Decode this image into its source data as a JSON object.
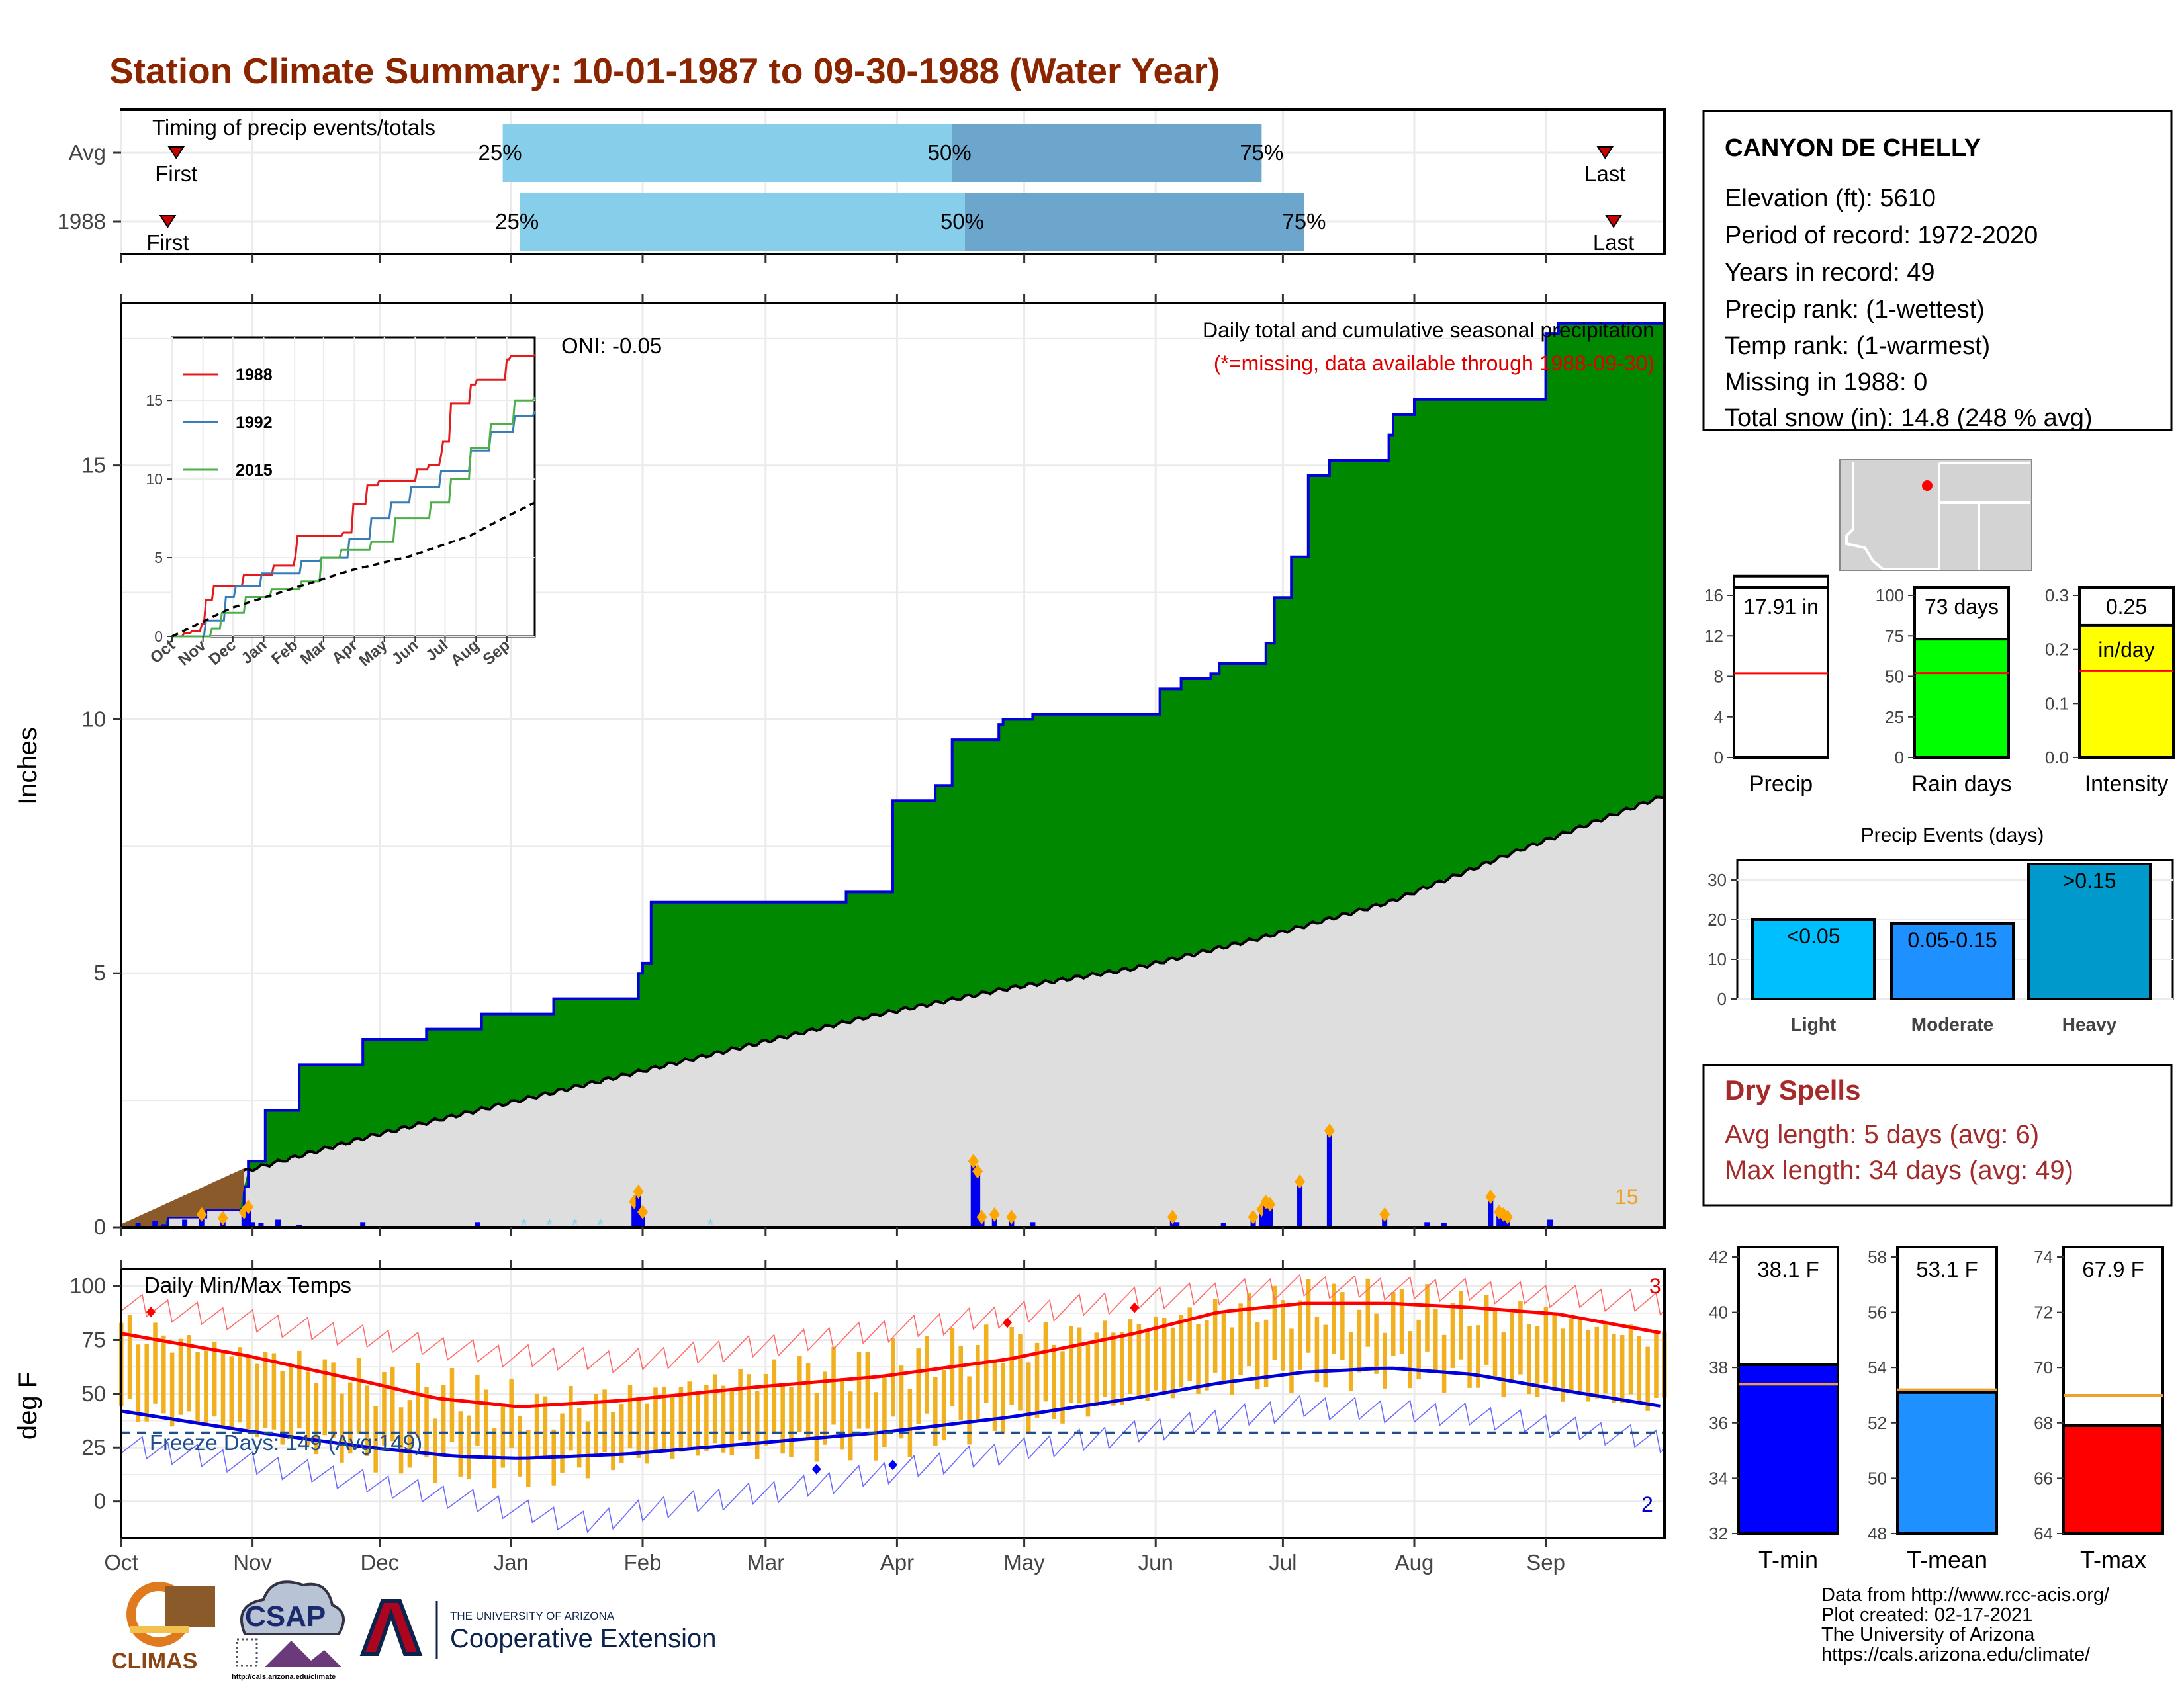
{
  "title": "Station Climate Summary: 10-01-1987 to 09-30-1988 (Water Year)",
  "colors": {
    "title": "#8B2500",
    "green_fill": "#008800",
    "blue_line": "#0000DD",
    "gray_fill": "#DEDEDE",
    "brown": "#8B5A2B",
    "light_blue": "#87CEEB",
    "mid_blue": "#6CA6CD",
    "tmin_bar": "#0000FF",
    "tmean_bar": "#1E90FF",
    "tmax_bar": "#FF0000",
    "range_bar": "#F0B020",
    "orange_ref": "#F0A030",
    "dry_red": "#A52A2A"
  },
  "timing": {
    "title": "Timing of precip events/totals",
    "rows": [
      {
        "label": "Avg",
        "first_label": "First",
        "last_label": "Last",
        "q25": "25%",
        "q50": "50%",
        "q75": "75%",
        "first_day": 14,
        "p25_day": 91,
        "p50_day": 197,
        "p75_day": 270,
        "last_day": 351
      },
      {
        "label": "1988",
        "first_label": "First",
        "last_label": "Last",
        "q25": "25%",
        "q50": "50%",
        "q75": "75%",
        "first_day": 12,
        "p25_day": 95,
        "p50_day": 200,
        "p75_day": 280,
        "last_day": 353
      }
    ]
  },
  "station": {
    "name": "CANYON DE CHELLY",
    "lines": [
      "Elevation (ft): 5610",
      "Period of record: 1972-2020",
      "Years in record: 49",
      "Precip rank:  (1-wettest)",
      "Temp rank:  (1-warmest)",
      "Missing in 1988: 0",
      "Total snow (in): 14.8 (248 % avg)"
    ]
  },
  "main_precip": {
    "title": "Daily total and cumulative seasonal precipitation",
    "subtitle": "(*=missing, data available through 1988-09-30)",
    "oni": "ONI: -0.05",
    "ylabel": "Inches",
    "yticks": [
      "0",
      "5",
      "10",
      "15"
    ],
    "corner_count": "15"
  },
  "inset": {
    "legend": [
      "1988",
      "1992",
      "2015"
    ],
    "yticks": [
      "0",
      "5",
      "10",
      "15"
    ],
    "xticks": [
      "Oct",
      "Nov",
      "Dec",
      "Jan",
      "Feb",
      "Mar",
      "Apr",
      "May",
      "Jun",
      "Jul",
      "Aug",
      "Sep"
    ]
  },
  "temps": {
    "title": "Daily Min/Max Temps",
    "ylabel": "deg F",
    "yticks": [
      "0",
      "25",
      "50",
      "75",
      "100"
    ],
    "freeze_label": "Freeze Days: 149 (Avg:149)",
    "count_max": "3",
    "count_min": "2"
  },
  "months": [
    "Oct",
    "Nov",
    "Dec",
    "Jan",
    "Feb",
    "Mar",
    "Apr",
    "May",
    "Jun",
    "Jul",
    "Aug",
    "Sep"
  ],
  "mini_bars": [
    {
      "label": "Precip",
      "value_text": "17.91 in",
      "value": 17.91,
      "avg": 8.3,
      "ymax": 16,
      "yticks": [
        "0",
        "4",
        "8",
        "12",
        "16"
      ],
      "color": "#FFFFFF"
    },
    {
      "label": "Rain days",
      "value_text": "73 days",
      "value": 73,
      "avg": 52,
      "ymax": 100,
      "yticks": [
        "0",
        "25",
        "50",
        "75",
        "100"
      ],
      "color": "#00FF00"
    },
    {
      "label": "Intensity",
      "value_text": "0.25",
      "unit_text": "in/day",
      "value": 0.245,
      "avg": 0.16,
      "ymax": 0.3,
      "yticks": [
        "0.0",
        "0.1",
        "0.2",
        "0.3"
      ],
      "color": "#FFFF00"
    }
  ],
  "precip_events": {
    "title": "Precip Events (days)",
    "yticks": [
      "0",
      "10",
      "20",
      "30"
    ],
    "categories": [
      "Light",
      "Moderate",
      "Heavy"
    ],
    "bar_labels": [
      "<0.05",
      "0.05-0.15",
      ">0.15"
    ],
    "values": [
      20,
      19,
      34
    ],
    "colors": [
      "#00BFFF",
      "#1E90FF",
      "#0099CC"
    ]
  },
  "dry_spells": {
    "title": "Dry Spells",
    "avg_line": "Avg length: 5 days (avg: 6)",
    "max_line": "Max length: 34 days (avg: 49)"
  },
  "temp_bars": [
    {
      "label": "T-min",
      "value_text": "38.1 F",
      "value": 38.1,
      "avg": 37.4,
      "ymin": 32,
      "ymax": 42,
      "yticks": [
        "32",
        "34",
        "36",
        "38",
        "40",
        "42"
      ],
      "color": "#0000FF"
    },
    {
      "label": "T-mean",
      "value_text": "53.1 F",
      "value": 53.1,
      "avg": 53.2,
      "ymin": 48,
      "ymax": 58,
      "yticks": [
        "48",
        "50",
        "52",
        "54",
        "56",
        "58"
      ],
      "color": "#1E90FF"
    },
    {
      "label": "T-max",
      "value_text": "67.9 F",
      "value": 67.9,
      "avg": 69.0,
      "ymin": 64,
      "ymax": 74,
      "yticks": [
        "64",
        "66",
        "68",
        "70",
        "72",
        "74"
      ],
      "color": "#FF0000"
    }
  ],
  "footer": {
    "lines": [
      "Data from http://www.rcc-acis.org/",
      "Plot created: 02-17-2021",
      "The University of Arizona",
      "https://cals.arizona.edu/climate/"
    ],
    "climas": "CLIMAS",
    "csap": "CSAP",
    "csap_url": "http://cals.arizona.edu/climate",
    "ua_small": "THE UNIVERSITY OF ARIZONA",
    "ua_big": "Cooperative Extension"
  },
  "chart_data": [
    {
      "type": "area",
      "title": "Daily total and cumulative seasonal precipitation",
      "ylabel": "Inches",
      "ylim": [
        0,
        18.2
      ],
      "x_unit": "day of water year (1 = Oct 1)",
      "cumulative_1988": {
        "days": [
          1,
          12,
          21,
          30,
          31,
          35,
          43,
          58,
          73,
          86,
          103,
          123,
          124,
          126,
          172,
          183,
          193,
          197,
          208,
          209,
          216,
          246,
          251,
          258,
          260,
          271,
          273,
          277,
          281,
          286,
          300,
          301,
          306,
          337,
          340,
          365
        ],
        "values": [
          0.02,
          0.2,
          0.35,
          0.8,
          1.3,
          2.3,
          3.2,
          3.7,
          3.9,
          4.2,
          4.5,
          5.0,
          5.2,
          6.4,
          6.6,
          8.4,
          8.7,
          9.6,
          9.9,
          10.0,
          10.1,
          10.6,
          10.8,
          10.9,
          11.1,
          11.5,
          12.4,
          13.2,
          14.8,
          15.1,
          15.6,
          16.0,
          16.3,
          17.6,
          17.8,
          17.91
        ]
      },
      "average_cumulative": {
        "days": [
          1,
          30,
          60,
          90,
          120,
          150,
          180,
          210,
          240,
          270,
          300,
          330,
          365
        ],
        "values": [
          0.0,
          1.1,
          1.8,
          2.4,
          3.0,
          3.6,
          4.2,
          4.7,
          5.1,
          5.7,
          6.4,
          7.4,
          8.5
        ]
      },
      "daily_bars": {
        "days": [
          5,
          9,
          11,
          16,
          20,
          25,
          30,
          31,
          32,
          34,
          38,
          43,
          58,
          85,
          122,
          123,
          124,
          202,
          203,
          204,
          207,
          211,
          216,
          249,
          250,
          261,
          268,
          270,
          271,
          272,
          279,
          286,
          299,
          309,
          313,
          324,
          326,
          327,
          328,
          338
        ],
        "values": [
          0.08,
          0.12,
          0.06,
          0.15,
          0.25,
          0.18,
          0.3,
          0.4,
          0.1,
          0.08,
          0.15,
          0.05,
          0.1,
          0.1,
          0.5,
          0.7,
          0.3,
          1.3,
          1.1,
          0.2,
          0.25,
          0.2,
          0.1,
          0.2,
          0.1,
          0.08,
          0.2,
          0.35,
          0.5,
          0.45,
          0.9,
          1.9,
          0.25,
          0.1,
          0.08,
          0.6,
          0.3,
          0.25,
          0.2,
          0.15
        ]
      }
    },
    {
      "type": "line",
      "title": "",
      "legend": [
        "1988",
        "1992",
        "2015"
      ],
      "ylim": [
        0,
        19
      ],
      "x_unit": "day of water year",
      "series": [
        {
          "name": "1988",
          "days": [
            1,
            12,
            21,
            30,
            35,
            43,
            73,
            103,
            124,
            126,
            172,
            183,
            197,
            208,
            246,
            258,
            271,
            273,
            281,
            300,
            301,
            306,
            337,
            340,
            365
          ],
          "values": [
            0.0,
            0.2,
            0.35,
            0.8,
            2.3,
            3.2,
            3.9,
            4.5,
            5.2,
            6.4,
            6.6,
            8.4,
            9.6,
            9.9,
            10.6,
            10.9,
            11.5,
            12.4,
            14.8,
            15.6,
            16.0,
            16.3,
            17.6,
            17.8,
            17.91
          ]
        },
        {
          "name": "1992",
          "days": [
            1,
            35,
            55,
            65,
            90,
            130,
            150,
            178,
            200,
            220,
            240,
            270,
            300,
            320,
            345,
            365
          ],
          "values": [
            0.0,
            1.0,
            2.5,
            3.2,
            4.0,
            4.8,
            5.0,
            6.2,
            7.5,
            8.5,
            9.5,
            10.5,
            11.8,
            13.0,
            14.0,
            14.3
          ]
        },
        {
          "name": "2015",
          "days": [
            1,
            40,
            50,
            75,
            100,
            130,
            150,
            170,
            200,
            225,
            260,
            280,
            300,
            320,
            345,
            365
          ],
          "values": [
            0.0,
            0.5,
            1.5,
            2.5,
            3.0,
            3.5,
            5.0,
            5.5,
            6.0,
            7.5,
            8.5,
            10.0,
            12.0,
            13.5,
            15.0,
            15.2
          ]
        },
        {
          "name": "average",
          "days": [
            1,
            60,
            120,
            180,
            240,
            300,
            330,
            365
          ],
          "values": [
            0.0,
            1.8,
            3.0,
            4.2,
            5.1,
            6.4,
            7.4,
            8.5
          ]
        }
      ]
    },
    {
      "type": "line",
      "title": "Daily Min/Max Temps",
      "ylabel": "deg F",
      "ylim": [
        -17,
        108
      ],
      "x_unit": "day of water year",
      "freeze_line_degF": 32,
      "avg_max": {
        "days": [
          1,
          30,
          60,
          75,
          95,
          120,
          150,
          180,
          210,
          240,
          260,
          280,
          300,
          320,
          340,
          365
        ],
        "values": [
          78,
          68,
          55,
          48,
          44,
          47,
          53,
          58,
          66,
          78,
          88,
          92,
          92,
          90,
          87,
          78
        ]
      },
      "avg_min": {
        "days": [
          1,
          30,
          60,
          80,
          95,
          120,
          150,
          180,
          210,
          240,
          260,
          280,
          300,
          320,
          340,
          365
        ],
        "values": [
          42,
          33,
          25,
          21,
          20,
          22,
          27,
          32,
          39,
          48,
          55,
          60,
          62,
          59,
          52,
          44
        ]
      },
      "record_max": {
        "days": [
          1,
          45,
          90,
          120,
          160,
          200,
          240,
          280,
          320,
          365
        ],
        "values": [
          92,
          80,
          68,
          65,
          74,
          84,
          94,
          100,
          98,
          92
        ]
      },
      "record_min": {
        "days": [
          1,
          45,
          90,
          110,
          130,
          160,
          200,
          240,
          280,
          320,
          365
        ],
        "values": [
          26,
          14,
          -2,
          -10,
          -2,
          6,
          20,
          32,
          44,
          40,
          28
        ]
      },
      "daily_max_1988": {
        "days": [
          1,
          20,
          40,
          60,
          80,
          100,
          120,
          140,
          160,
          180,
          200,
          220,
          240,
          260,
          280,
          300,
          320,
          340,
          365
        ],
        "values": [
          80,
          72,
          65,
          55,
          50,
          42,
          48,
          55,
          60,
          62,
          70,
          75,
          82,
          88,
          92,
          90,
          88,
          85,
          75
        ]
      },
      "daily_min_1988": {
        "days": [
          1,
          20,
          40,
          60,
          80,
          100,
          120,
          140,
          160,
          180,
          200,
          220,
          240,
          260,
          280,
          300,
          320,
          340,
          365
        ],
        "values": [
          42,
          38,
          30,
          22,
          18,
          14,
          20,
          24,
          26,
          28,
          36,
          40,
          48,
          55,
          60,
          62,
          58,
          50,
          45
        ]
      }
    }
  ]
}
